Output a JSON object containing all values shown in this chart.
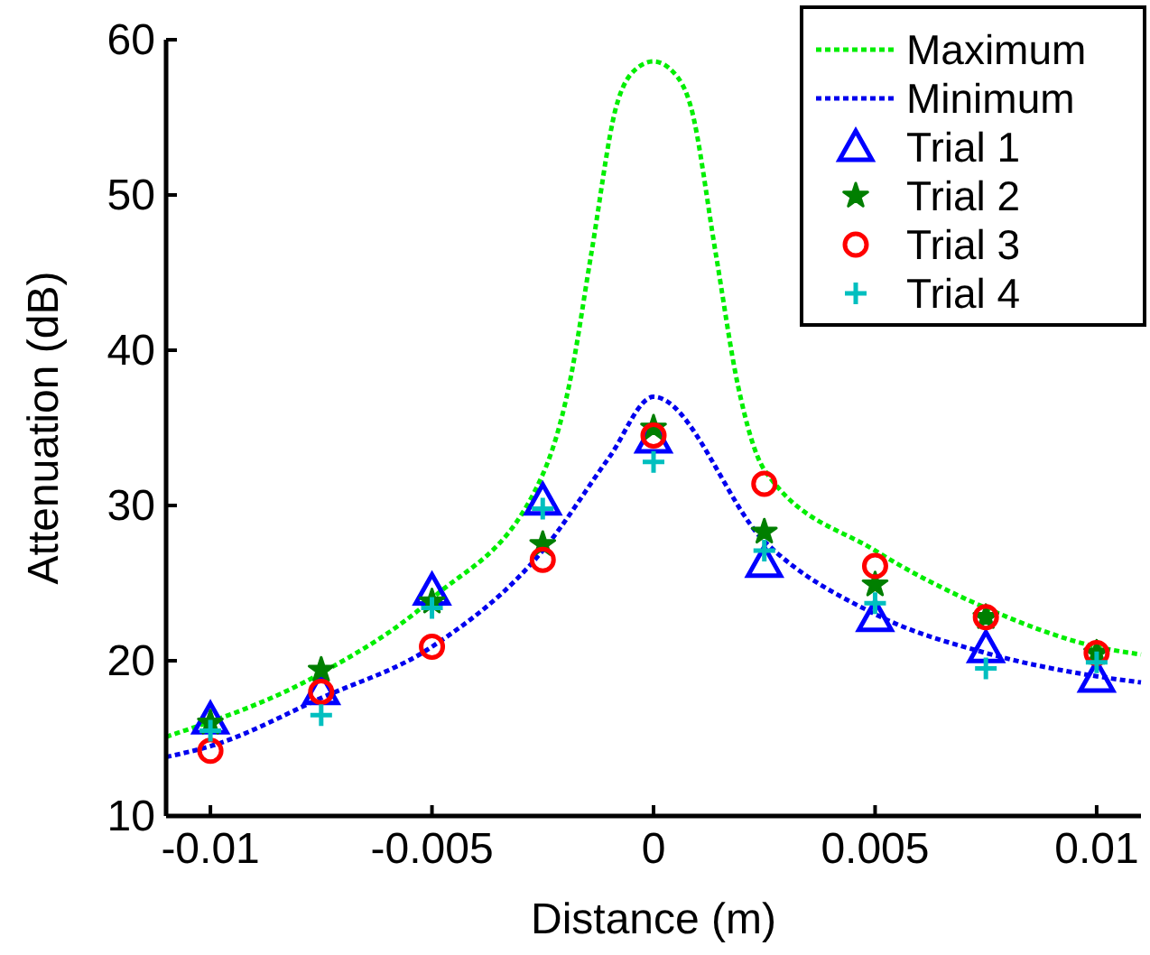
{
  "chart_data": {
    "type": "line",
    "xlabel": "Distance (m)",
    "ylabel": "Attenuation (dB)",
    "xlim": [
      -0.011,
      0.011
    ],
    "ylim": [
      10,
      60
    ],
    "xticks": [
      -0.01,
      -0.005,
      0,
      0.005,
      0.01
    ],
    "yticks": [
      10,
      20,
      30,
      40,
      50,
      60
    ],
    "grid": false,
    "legend": "top right",
    "series": [
      {
        "name": "Maximum",
        "type": "line",
        "color": "#00ee00",
        "line_style": "dotted",
        "marker": "none",
        "x": [
          -0.011,
          -0.0075,
          -0.005,
          -0.0025,
          -0.0019,
          -0.0014,
          -0.00085,
          -0.0004,
          0,
          0.00045,
          0.00085,
          0.0014,
          0.0019,
          0.0025,
          0.005,
          0.0075,
          0.01,
          0.011
        ],
        "values": [
          15.1,
          19.2,
          24.0,
          32.0,
          37.8,
          46.3,
          55.6,
          58.1,
          58.6,
          57.9,
          55.6,
          46.3,
          37.8,
          32.3,
          27.1,
          23.4,
          20.9,
          20.4
        ]
      },
      {
        "name": "Minimum",
        "type": "line",
        "color": "#0000ee",
        "line_style": "dotted",
        "marker": "none",
        "x": [
          -0.011,
          -0.01,
          -0.0075,
          -0.005,
          -0.0025,
          -0.001,
          0,
          0.0025,
          0.005,
          0.0075,
          0.01,
          0.011
        ],
        "values": [
          13.8,
          14.5,
          17.6,
          20.9,
          27.1,
          33.1,
          37.0,
          27.7,
          23.0,
          20.5,
          19.0,
          18.6
        ]
      },
      {
        "name": "Trial 1",
        "type": "scatter",
        "color": "#0000ff",
        "marker": "triangle",
        "x": [
          -0.01,
          -0.0075,
          -0.005,
          -0.0025,
          0,
          0.0025,
          0.005,
          0.0075,
          0.01
        ],
        "values": [
          16.2,
          18.1,
          24.5,
          30.3,
          34.3,
          26.3,
          22.8,
          20.8,
          18.9
        ]
      },
      {
        "name": "Trial 2",
        "type": "scatter",
        "color": "#007f00",
        "marker": "star",
        "x": [
          -0.01,
          -0.0075,
          -0.005,
          -0.0025,
          0,
          0.0025,
          0.005,
          0.0075,
          0.01
        ],
        "values": [
          16.0,
          19.4,
          23.8,
          27.5,
          35.0,
          28.3,
          24.9,
          22.8,
          20.5
        ]
      },
      {
        "name": "Trial 3",
        "type": "scatter",
        "color": "#ff0000",
        "marker": "circle",
        "x": [
          -0.01,
          -0.0075,
          -0.005,
          -0.0025,
          0,
          0.0025,
          0.005,
          0.0075,
          0.01
        ],
        "values": [
          14.2,
          18.0,
          20.9,
          26.5,
          34.5,
          31.4,
          26.1,
          22.8,
          20.5
        ]
      },
      {
        "name": "Trial 4",
        "type": "scatter",
        "color": "#00bfbf",
        "marker": "cross",
        "x": [
          -0.01,
          -0.0075,
          -0.005,
          -0.0025,
          0,
          0.0025,
          0.005,
          0.0075,
          0.01
        ],
        "values": [
          15.5,
          16.5,
          23.4,
          29.8,
          32.8,
          27.1,
          23.7,
          19.5,
          19.9
        ]
      }
    ]
  }
}
